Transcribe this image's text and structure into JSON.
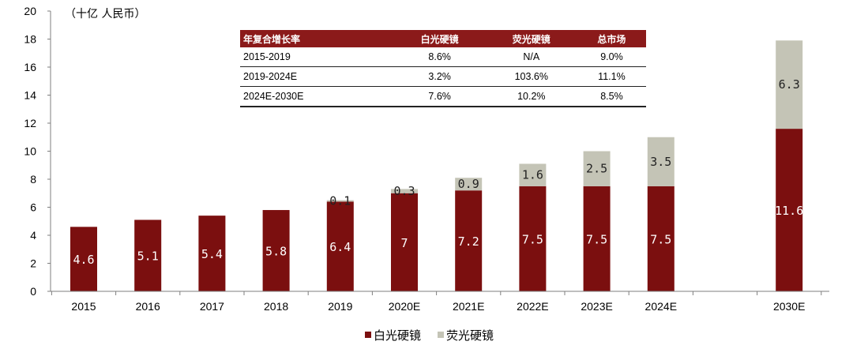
{
  "chart_data": {
    "type": "bar",
    "stacked": true,
    "unit_label": "（十亿 人民币）",
    "categories": [
      "2015",
      "2016",
      "2017",
      "2018",
      "2019",
      "2020E",
      "2021E",
      "2022E",
      "2023E",
      "2024E",
      "2030E"
    ],
    "series": [
      {
        "name": "白光硬镜",
        "color": "#7b0f0f",
        "values": [
          4.6,
          5.1,
          5.4,
          5.8,
          6.4,
          7,
          7.2,
          7.5,
          7.5,
          7.5,
          11.6
        ],
        "labels": [
          "4.6",
          "5.1",
          "5.4",
          "5.8",
          "6.4",
          "7",
          "7.2",
          "7.5",
          "7.5",
          "7.5",
          "11.6"
        ]
      },
      {
        "name": "荧光硬镜",
        "color": "#c4c4b6",
        "values": [
          0,
          0,
          0,
          0,
          0.1,
          0.3,
          0.9,
          1.6,
          2.5,
          3.5,
          6.3
        ],
        "labels": [
          "",
          "",
          "",
          "",
          "0.1",
          "0.3",
          "0.9",
          "1.6",
          "2.5",
          "3.5",
          "6.3"
        ]
      }
    ],
    "ylim": [
      0,
      20
    ],
    "yticks": [
      "0",
      "2",
      "4",
      "6",
      "8",
      "10",
      "12",
      "14",
      "16",
      "18",
      "20"
    ],
    "legend": "bottom-center",
    "grid": false
  },
  "table": {
    "headers": [
      "年复合增长率",
      "白光硬镜",
      "荧光硬镜",
      "总市场"
    ],
    "rows": [
      [
        "2015-2019",
        "8.6%",
        "N/A",
        "9.0%"
      ],
      [
        "2019-2024E",
        "3.2%",
        "103.6%",
        "11.1%"
      ],
      [
        "2024E-2030E",
        "7.6%",
        "10.2%",
        "8.5%"
      ]
    ]
  }
}
